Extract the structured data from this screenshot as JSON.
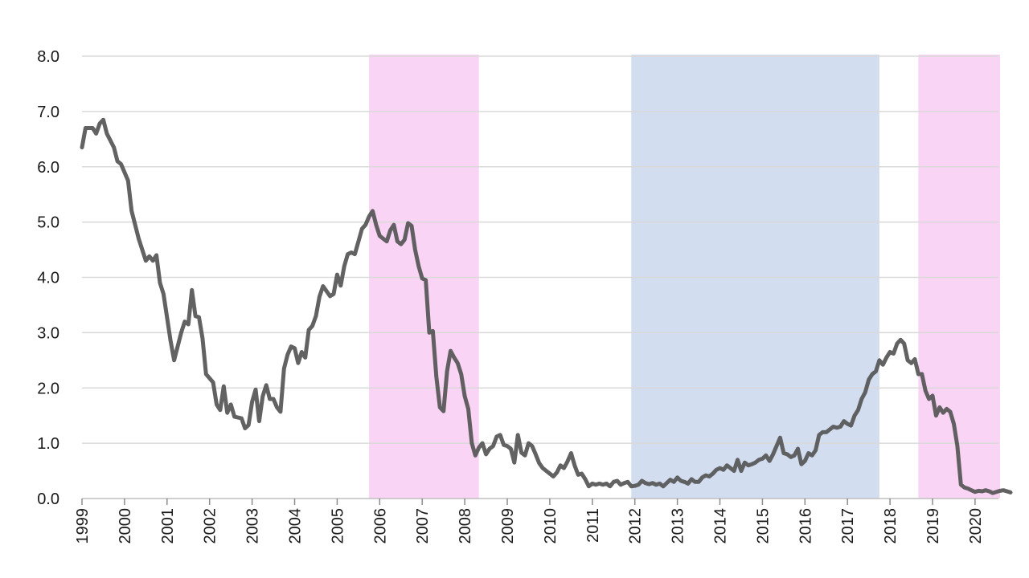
{
  "chart_data": {
    "type": "line",
    "title": "",
    "xlabel": "",
    "ylabel": "",
    "ylim": [
      0,
      8
    ],
    "xlim": [
      "1999-01",
      "2020-07"
    ],
    "grid": true,
    "y_ticks": [
      "0.0",
      "1.0",
      "2.0",
      "3.0",
      "4.0",
      "5.0",
      "6.0",
      "7.0",
      "8.0"
    ],
    "x_ticks": [
      "1999",
      "2000",
      "2001",
      "2002",
      "2003",
      "2004",
      "2005",
      "2006",
      "2007",
      "2008",
      "2009",
      "2010",
      "2011",
      "2012",
      "2013",
      "2014",
      "2015",
      "2016",
      "2017",
      "2018",
      "2019",
      "2020"
    ],
    "series": [
      {
        "color": "#555555",
        "points": [
          [
            "1999-01",
            6.35
          ],
          [
            "1999-02",
            6.7
          ],
          [
            "1999-04",
            6.7
          ],
          [
            "1999-05",
            6.6
          ],
          [
            "1999-06",
            6.78
          ],
          [
            "1999-07",
            6.85
          ],
          [
            "1999-08",
            6.6
          ],
          [
            "1999-10",
            6.35
          ],
          [
            "1999-11",
            6.1
          ],
          [
            "1999-12",
            6.05
          ],
          [
            "2000-02",
            5.75
          ],
          [
            "2000-03",
            5.2
          ],
          [
            "2000-05",
            4.7
          ],
          [
            "2000-07",
            4.3
          ],
          [
            "2000-08",
            4.38
          ],
          [
            "2000-09",
            4.3
          ],
          [
            "2000-10",
            4.4
          ],
          [
            "2000-11",
            3.9
          ],
          [
            "2000-12",
            3.7
          ],
          [
            "2001-02",
            2.85
          ],
          [
            "2001-03",
            2.5
          ],
          [
            "2001-05",
            3.0
          ],
          [
            "2001-06",
            3.2
          ],
          [
            "2001-07",
            3.15
          ],
          [
            "2001-08",
            3.77
          ],
          [
            "2001-09",
            3.3
          ],
          [
            "2001-10",
            3.28
          ],
          [
            "2001-11",
            2.9
          ],
          [
            "2001-12",
            2.25
          ],
          [
            "2002-02",
            2.1
          ],
          [
            "2002-03",
            1.7
          ],
          [
            "2002-04",
            1.6
          ],
          [
            "2002-05",
            2.03
          ],
          [
            "2002-06",
            1.55
          ],
          [
            "2002-07",
            1.7
          ],
          [
            "2002-08",
            1.48
          ],
          [
            "2002-10",
            1.45
          ],
          [
            "2002-11",
            1.27
          ],
          [
            "2002-12",
            1.33
          ],
          [
            "2003-01",
            1.75
          ],
          [
            "2003-02",
            1.97
          ],
          [
            "2003-03",
            1.4
          ],
          [
            "2003-04",
            1.85
          ],
          [
            "2003-05",
            2.05
          ],
          [
            "2003-06",
            1.8
          ],
          [
            "2003-07",
            1.8
          ],
          [
            "2003-08",
            1.65
          ],
          [
            "2003-09",
            1.57
          ],
          [
            "2003-10",
            2.35
          ],
          [
            "2003-11",
            2.6
          ],
          [
            "2003-12",
            2.75
          ],
          [
            "2004-01",
            2.72
          ],
          [
            "2004-02",
            2.45
          ],
          [
            "2004-03",
            2.65
          ],
          [
            "2004-04",
            2.55
          ],
          [
            "2004-05",
            3.05
          ],
          [
            "2004-06",
            3.12
          ],
          [
            "2004-07",
            3.3
          ],
          [
            "2004-08",
            3.65
          ],
          [
            "2004-09",
            3.84
          ],
          [
            "2004-10",
            3.75
          ],
          [
            "2004-11",
            3.66
          ],
          [
            "2004-12",
            3.7
          ],
          [
            "2005-01",
            4.05
          ],
          [
            "2005-02",
            3.85
          ],
          [
            "2005-03",
            4.2
          ],
          [
            "2005-04",
            4.42
          ],
          [
            "2005-05",
            4.45
          ],
          [
            "2005-06",
            4.42
          ],
          [
            "2005-07",
            4.65
          ],
          [
            "2005-08",
            4.88
          ],
          [
            "2005-09",
            4.95
          ],
          [
            "2005-10",
            5.1
          ],
          [
            "2005-11",
            5.2
          ],
          [
            "2005-12",
            4.95
          ],
          [
            "2006-01",
            4.75
          ],
          [
            "2006-02",
            4.7
          ],
          [
            "2006-03",
            4.65
          ],
          [
            "2006-04",
            4.85
          ],
          [
            "2006-05",
            4.95
          ],
          [
            "2006-06",
            4.65
          ],
          [
            "2006-07",
            4.6
          ],
          [
            "2006-08",
            4.68
          ],
          [
            "2006-09",
            4.98
          ],
          [
            "2006-10",
            4.93
          ],
          [
            "2006-11",
            4.5
          ],
          [
            "2006-12",
            4.2
          ],
          [
            "2007-01",
            3.98
          ],
          [
            "2007-02",
            3.95
          ],
          [
            "2007-03",
            3.0
          ],
          [
            "2007-04",
            3.03
          ],
          [
            "2007-05",
            2.2
          ],
          [
            "2007-06",
            1.65
          ],
          [
            "2007-07",
            1.58
          ],
          [
            "2007-08",
            2.3
          ],
          [
            "2007-09",
            2.67
          ],
          [
            "2007-10",
            2.55
          ],
          [
            "2007-11",
            2.45
          ],
          [
            "2007-12",
            2.25
          ],
          [
            "2008-01",
            1.85
          ],
          [
            "2008-02",
            1.62
          ],
          [
            "2008-03",
            1.0
          ],
          [
            "2008-04",
            0.78
          ],
          [
            "2008-05",
            0.92
          ],
          [
            "2008-06",
            1.0
          ],
          [
            "2008-07",
            0.8
          ],
          [
            "2008-08",
            0.9
          ],
          [
            "2008-09",
            0.95
          ],
          [
            "2008-10",
            1.12
          ],
          [
            "2008-11",
            1.15
          ],
          [
            "2008-12",
            0.97
          ],
          [
            "2009-01",
            0.95
          ],
          [
            "2009-02",
            0.9
          ],
          [
            "2009-03",
            0.65
          ],
          [
            "2009-04",
            1.15
          ],
          [
            "2009-05",
            0.83
          ],
          [
            "2009-06",
            0.78
          ],
          [
            "2009-07",
            1.0
          ],
          [
            "2009-08",
            0.95
          ],
          [
            "2009-09",
            0.8
          ],
          [
            "2009-10",
            0.64
          ],
          [
            "2009-11",
            0.55
          ],
          [
            "2009-12",
            0.5
          ],
          [
            "2010-01",
            0.45
          ],
          [
            "2010-02",
            0.4
          ],
          [
            "2010-03",
            0.47
          ],
          [
            "2010-04",
            0.6
          ],
          [
            "2010-05",
            0.55
          ],
          [
            "2010-06",
            0.67
          ],
          [
            "2010-07",
            0.82
          ],
          [
            "2010-08",
            0.6
          ],
          [
            "2010-09",
            0.43
          ],
          [
            "2010-10",
            0.45
          ],
          [
            "2010-11",
            0.35
          ],
          [
            "2010-12",
            0.22
          ],
          [
            "2011-01",
            0.27
          ],
          [
            "2011-02",
            0.25
          ],
          [
            "2011-03",
            0.27
          ],
          [
            "2011-04",
            0.25
          ],
          [
            "2011-05",
            0.27
          ],
          [
            "2011-06",
            0.22
          ],
          [
            "2011-07",
            0.3
          ],
          [
            "2011-08",
            0.32
          ],
          [
            "2011-09",
            0.25
          ],
          [
            "2011-10",
            0.28
          ],
          [
            "2011-11",
            0.3
          ],
          [
            "2011-12",
            0.22
          ],
          [
            "2012-01",
            0.23
          ],
          [
            "2012-02",
            0.25
          ],
          [
            "2012-03",
            0.32
          ],
          [
            "2012-04",
            0.28
          ],
          [
            "2012-05",
            0.26
          ],
          [
            "2012-06",
            0.28
          ],
          [
            "2012-07",
            0.25
          ],
          [
            "2012-08",
            0.27
          ],
          [
            "2012-09",
            0.22
          ],
          [
            "2012-10",
            0.28
          ],
          [
            "2012-11",
            0.34
          ],
          [
            "2012-12",
            0.3
          ],
          [
            "2013-01",
            0.38
          ],
          [
            "2013-02",
            0.32
          ],
          [
            "2013-03",
            0.3
          ],
          [
            "2013-04",
            0.27
          ],
          [
            "2013-05",
            0.35
          ],
          [
            "2013-06",
            0.3
          ],
          [
            "2013-07",
            0.3
          ],
          [
            "2013-08",
            0.38
          ],
          [
            "2013-09",
            0.42
          ],
          [
            "2013-10",
            0.4
          ],
          [
            "2013-11",
            0.45
          ],
          [
            "2013-12",
            0.52
          ],
          [
            "2014-01",
            0.55
          ],
          [
            "2014-02",
            0.52
          ],
          [
            "2014-03",
            0.6
          ],
          [
            "2014-04",
            0.55
          ],
          [
            "2014-05",
            0.5
          ],
          [
            "2014-06",
            0.7
          ],
          [
            "2014-07",
            0.5
          ],
          [
            "2014-08",
            0.65
          ],
          [
            "2014-09",
            0.6
          ],
          [
            "2014-10",
            0.62
          ],
          [
            "2014-11",
            0.65
          ],
          [
            "2014-12",
            0.7
          ],
          [
            "2015-01",
            0.72
          ],
          [
            "2015-02",
            0.78
          ],
          [
            "2015-03",
            0.68
          ],
          [
            "2015-04",
            0.8
          ],
          [
            "2015-05",
            0.95
          ],
          [
            "2015-06",
            1.1
          ],
          [
            "2015-07",
            0.82
          ],
          [
            "2015-08",
            0.8
          ],
          [
            "2015-09",
            0.75
          ],
          [
            "2015-10",
            0.78
          ],
          [
            "2015-11",
            0.9
          ],
          [
            "2015-12",
            0.62
          ],
          [
            "2016-01",
            0.68
          ],
          [
            "2016-02",
            0.82
          ],
          [
            "2016-03",
            0.78
          ],
          [
            "2016-04",
            0.87
          ],
          [
            "2016-05",
            1.15
          ],
          [
            "2016-06",
            1.2
          ],
          [
            "2016-07",
            1.2
          ],
          [
            "2016-08",
            1.25
          ],
          [
            "2016-09",
            1.3
          ],
          [
            "2016-10",
            1.28
          ],
          [
            "2016-11",
            1.3
          ],
          [
            "2016-12",
            1.4
          ],
          [
            "2017-01",
            1.35
          ],
          [
            "2017-02",
            1.32
          ],
          [
            "2017-03",
            1.5
          ],
          [
            "2017-04",
            1.6
          ],
          [
            "2017-05",
            1.8
          ],
          [
            "2017-06",
            1.92
          ],
          [
            "2017-07",
            2.15
          ],
          [
            "2017-08",
            2.25
          ],
          [
            "2017-09",
            2.3
          ],
          [
            "2017-10",
            2.5
          ],
          [
            "2017-11",
            2.42
          ],
          [
            "2017-12",
            2.55
          ],
          [
            "2018-01",
            2.65
          ],
          [
            "2018-02",
            2.62
          ],
          [
            "2018-03",
            2.8
          ],
          [
            "2018-04",
            2.87
          ],
          [
            "2018-05",
            2.8
          ],
          [
            "2018-06",
            2.5
          ],
          [
            "2018-07",
            2.45
          ],
          [
            "2018-08",
            2.52
          ],
          [
            "2018-09",
            2.25
          ],
          [
            "2018-10",
            2.25
          ],
          [
            "2018-11",
            1.95
          ],
          [
            "2018-12",
            1.8
          ],
          [
            "2019-01",
            1.86
          ],
          [
            "2019-02",
            1.5
          ],
          [
            "2019-03",
            1.65
          ],
          [
            "2019-04",
            1.55
          ],
          [
            "2019-05",
            1.62
          ],
          [
            "2019-06",
            1.57
          ],
          [
            "2019-07",
            1.35
          ],
          [
            "2019-08",
            0.95
          ],
          [
            "2019-09",
            0.25
          ],
          [
            "2019-10",
            0.2
          ],
          [
            "2019-11",
            0.18
          ],
          [
            "2019-12",
            0.15
          ],
          [
            "2020-01",
            0.12
          ],
          [
            "2020-02",
            0.14
          ],
          [
            "2020-03",
            0.13
          ],
          [
            "2020-04",
            0.15
          ],
          [
            "2020-05",
            0.13
          ],
          [
            "2020-06",
            0.1
          ],
          [
            "2020-07",
            0.12
          ],
          [
            "2020-08",
            0.14
          ],
          [
            "2020-09",
            0.15
          ],
          [
            "2020-10",
            0.13
          ],
          [
            "2020-11",
            0.11
          ]
        ]
      }
    ],
    "shaded_periods": [
      {
        "start": "2005-10",
        "end": "2008-05",
        "color": "#f7b8ec"
      },
      {
        "start": "2011-12",
        "end": "2017-10",
        "color": "#b5c6e6"
      },
      {
        "start": "2018-09",
        "end": "2020-12",
        "color": "#f7b8ec"
      }
    ]
  }
}
